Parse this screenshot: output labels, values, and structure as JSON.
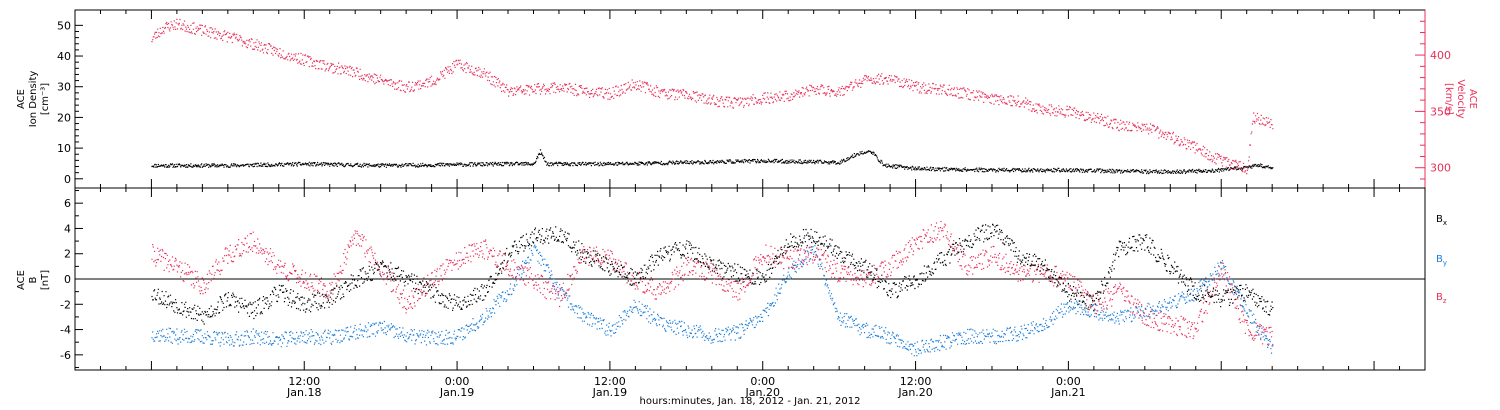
{
  "chart_data": [
    {
      "type": "scatter",
      "panel": "top",
      "ylabel_left": [
        "ACE",
        "Ion Density",
        "[cm⁻³]"
      ],
      "ylabel_right": [
        "ACE",
        "Velocity",
        "[km/s]"
      ],
      "ylim_left": [
        -3,
        55
      ],
      "ylim_right": [
        282,
        440
      ],
      "yticks_left": [
        "0",
        "10",
        "20",
        "30",
        "40",
        "50"
      ],
      "yticks_left_values": [
        0,
        10,
        20,
        30,
        40,
        50
      ],
      "yticks_right": [
        "300",
        "350",
        "400"
      ],
      "yticks_right_values": [
        300,
        350,
        400
      ],
      "series": [
        {
          "axis": "left",
          "color": "#000000",
          "t": [
            0,
            6,
            12,
            18,
            24,
            28,
            30,
            30.5,
            31,
            31.5,
            36,
            42,
            48,
            54,
            55.5,
            56.5,
            57.5,
            59,
            60,
            66,
            72,
            78,
            81,
            84,
            87,
            88
          ],
          "values": [
            4.5,
            4.5,
            5,
            4.5,
            4.8,
            5,
            5,
            9,
            5,
            5,
            5,
            5.5,
            6,
            5.5,
            8.5,
            9,
            4.5,
            4,
            3.5,
            3,
            3,
            2.5,
            2.5,
            3,
            4.5,
            4
          ]
        },
        {
          "axis": "right",
          "color": "#e8305a",
          "t": [
            0,
            1,
            2,
            4,
            6,
            8,
            10,
            12,
            14,
            16,
            18,
            20,
            22,
            24,
            26,
            28,
            30,
            32,
            34,
            36,
            38,
            40,
            42,
            44,
            46,
            48,
            50,
            52,
            54,
            56,
            58,
            60,
            62,
            64,
            66,
            68,
            70,
            72,
            74,
            76,
            78,
            80,
            82,
            84,
            86,
            86.5,
            88
          ],
          "values": [
            415,
            425,
            428,
            422,
            417,
            410,
            403,
            396,
            390,
            385,
            378,
            372,
            377,
            392,
            385,
            368,
            370,
            372,
            368,
            366,
            375,
            367,
            365,
            360,
            358,
            362,
            364,
            370,
            368,
            378,
            380,
            372,
            370,
            366,
            362,
            360,
            352,
            350,
            345,
            338,
            336,
            328,
            318,
            306,
            300,
            345,
            340
          ]
        }
      ]
    },
    {
      "type": "scatter",
      "panel": "bottom",
      "ylabel_left": [
        "ACE",
        "B",
        "[nT]"
      ],
      "ylim": [
        -7.2,
        7.2
      ],
      "yticks": [
        "-6",
        "-4",
        "-2",
        "0",
        "2",
        "4",
        "6"
      ],
      "ytick_values": [
        -6,
        -4,
        -2,
        0,
        2,
        4,
        6
      ],
      "legend": [
        {
          "label": "B",
          "subscript": "x",
          "color": "#000000"
        },
        {
          "label": "B",
          "subscript": "y",
          "color": "#1e7fd8"
        },
        {
          "label": "B",
          "subscript": "z",
          "color": "#e8305a"
        }
      ],
      "series": [
        {
          "name": "Bx",
          "color": "#000000",
          "t": [
            0,
            2,
            4,
            6,
            8,
            10,
            12,
            14,
            16,
            18,
            20,
            22,
            24,
            26,
            28,
            30,
            32,
            34,
            36,
            38,
            40,
            42,
            44,
            46,
            48,
            50,
            52,
            54,
            56,
            58,
            60,
            62,
            64,
            66,
            68,
            70,
            72,
            74,
            76,
            78,
            80,
            82,
            84,
            86,
            88
          ],
          "values": [
            -1,
            -2,
            -3,
            -1.5,
            -2.5,
            -1,
            -2,
            -1.5,
            0,
            1,
            0,
            -1,
            -2,
            -1,
            2,
            3.5,
            3.5,
            2,
            1,
            0,
            2,
            2.5,
            1,
            0.5,
            0,
            3,
            3.5,
            2,
            1,
            -1,
            0,
            1.5,
            3,
            4,
            2,
            1,
            -1,
            -2,
            2.5,
            3,
            1,
            -1,
            -1.5,
            -1,
            -2.5
          ]
        },
        {
          "name": "By",
          "color": "#1e7fd8",
          "t": [
            0,
            2,
            4,
            6,
            8,
            10,
            12,
            14,
            16,
            18,
            20,
            22,
            24,
            26,
            28,
            30,
            32,
            34,
            36,
            38,
            40,
            42,
            44,
            46,
            48,
            50,
            52,
            54,
            56,
            58,
            60,
            62,
            64,
            66,
            68,
            70,
            72,
            74,
            76,
            78,
            80,
            82,
            84,
            86,
            88
          ],
          "values": [
            -4.3,
            -4.5,
            -4.5,
            -4.8,
            -4.5,
            -4.8,
            -4.5,
            -4.6,
            -4.2,
            -3.8,
            -4.5,
            -4.6,
            -4.5,
            -3,
            -1,
            2.5,
            -1,
            -3,
            -4,
            -2,
            -3.5,
            -4,
            -4.5,
            -4.2,
            -3,
            0.5,
            2.5,
            -3,
            -4,
            -4.5,
            -5.5,
            -5,
            -4.5,
            -4.5,
            -4.3,
            -3.5,
            -2,
            -2.5,
            -3,
            -2.5,
            -2,
            -1,
            1,
            -2.5,
            -5.5
          ]
        },
        {
          "name": "Bz",
          "color": "#e8305a",
          "t": [
            0,
            2,
            4,
            6,
            8,
            10,
            12,
            14,
            16,
            18,
            20,
            22,
            24,
            26,
            28,
            30,
            32,
            34,
            36,
            38,
            40,
            42,
            44,
            46,
            48,
            50,
            52,
            54,
            56,
            58,
            60,
            62,
            64,
            66,
            68,
            70,
            72,
            74,
            76,
            78,
            80,
            82,
            84,
            86,
            88
          ],
          "values": [
            2,
            1,
            -0.5,
            2,
            3,
            1,
            0,
            -1,
            3.5,
            1,
            -2,
            0,
            1.5,
            2.5,
            1,
            0,
            -1.5,
            2,
            1.5,
            0,
            -1,
            1,
            0.5,
            -1,
            2,
            1.5,
            2,
            0.5,
            0,
            1,
            3,
            4,
            1,
            2,
            0.5,
            0.5,
            0,
            -2,
            -1,
            -3,
            -3.5,
            -4,
            1,
            -4,
            -4.5
          ]
        }
      ]
    }
  ],
  "x_axis": {
    "range_hours": [
      -6,
      100
    ],
    "tick_labels": [
      {
        "hours": 12,
        "time": "12:00",
        "date": "Jan.18"
      },
      {
        "hours": 24,
        "time": "0:00",
        "date": "Jan.19"
      },
      {
        "hours": 36,
        "time": "12:00",
        "date": "Jan.19"
      },
      {
        "hours": 48,
        "time": "0:00",
        "date": "Jan.20"
      },
      {
        "hours": 60,
        "time": "12:00",
        "date": "Jan.20"
      },
      {
        "hours": 72,
        "time": "0:00",
        "date": "Jan.21"
      }
    ],
    "title": "hours:minutes, Jan. 18, 2012 - Jan. 21, 2012"
  }
}
